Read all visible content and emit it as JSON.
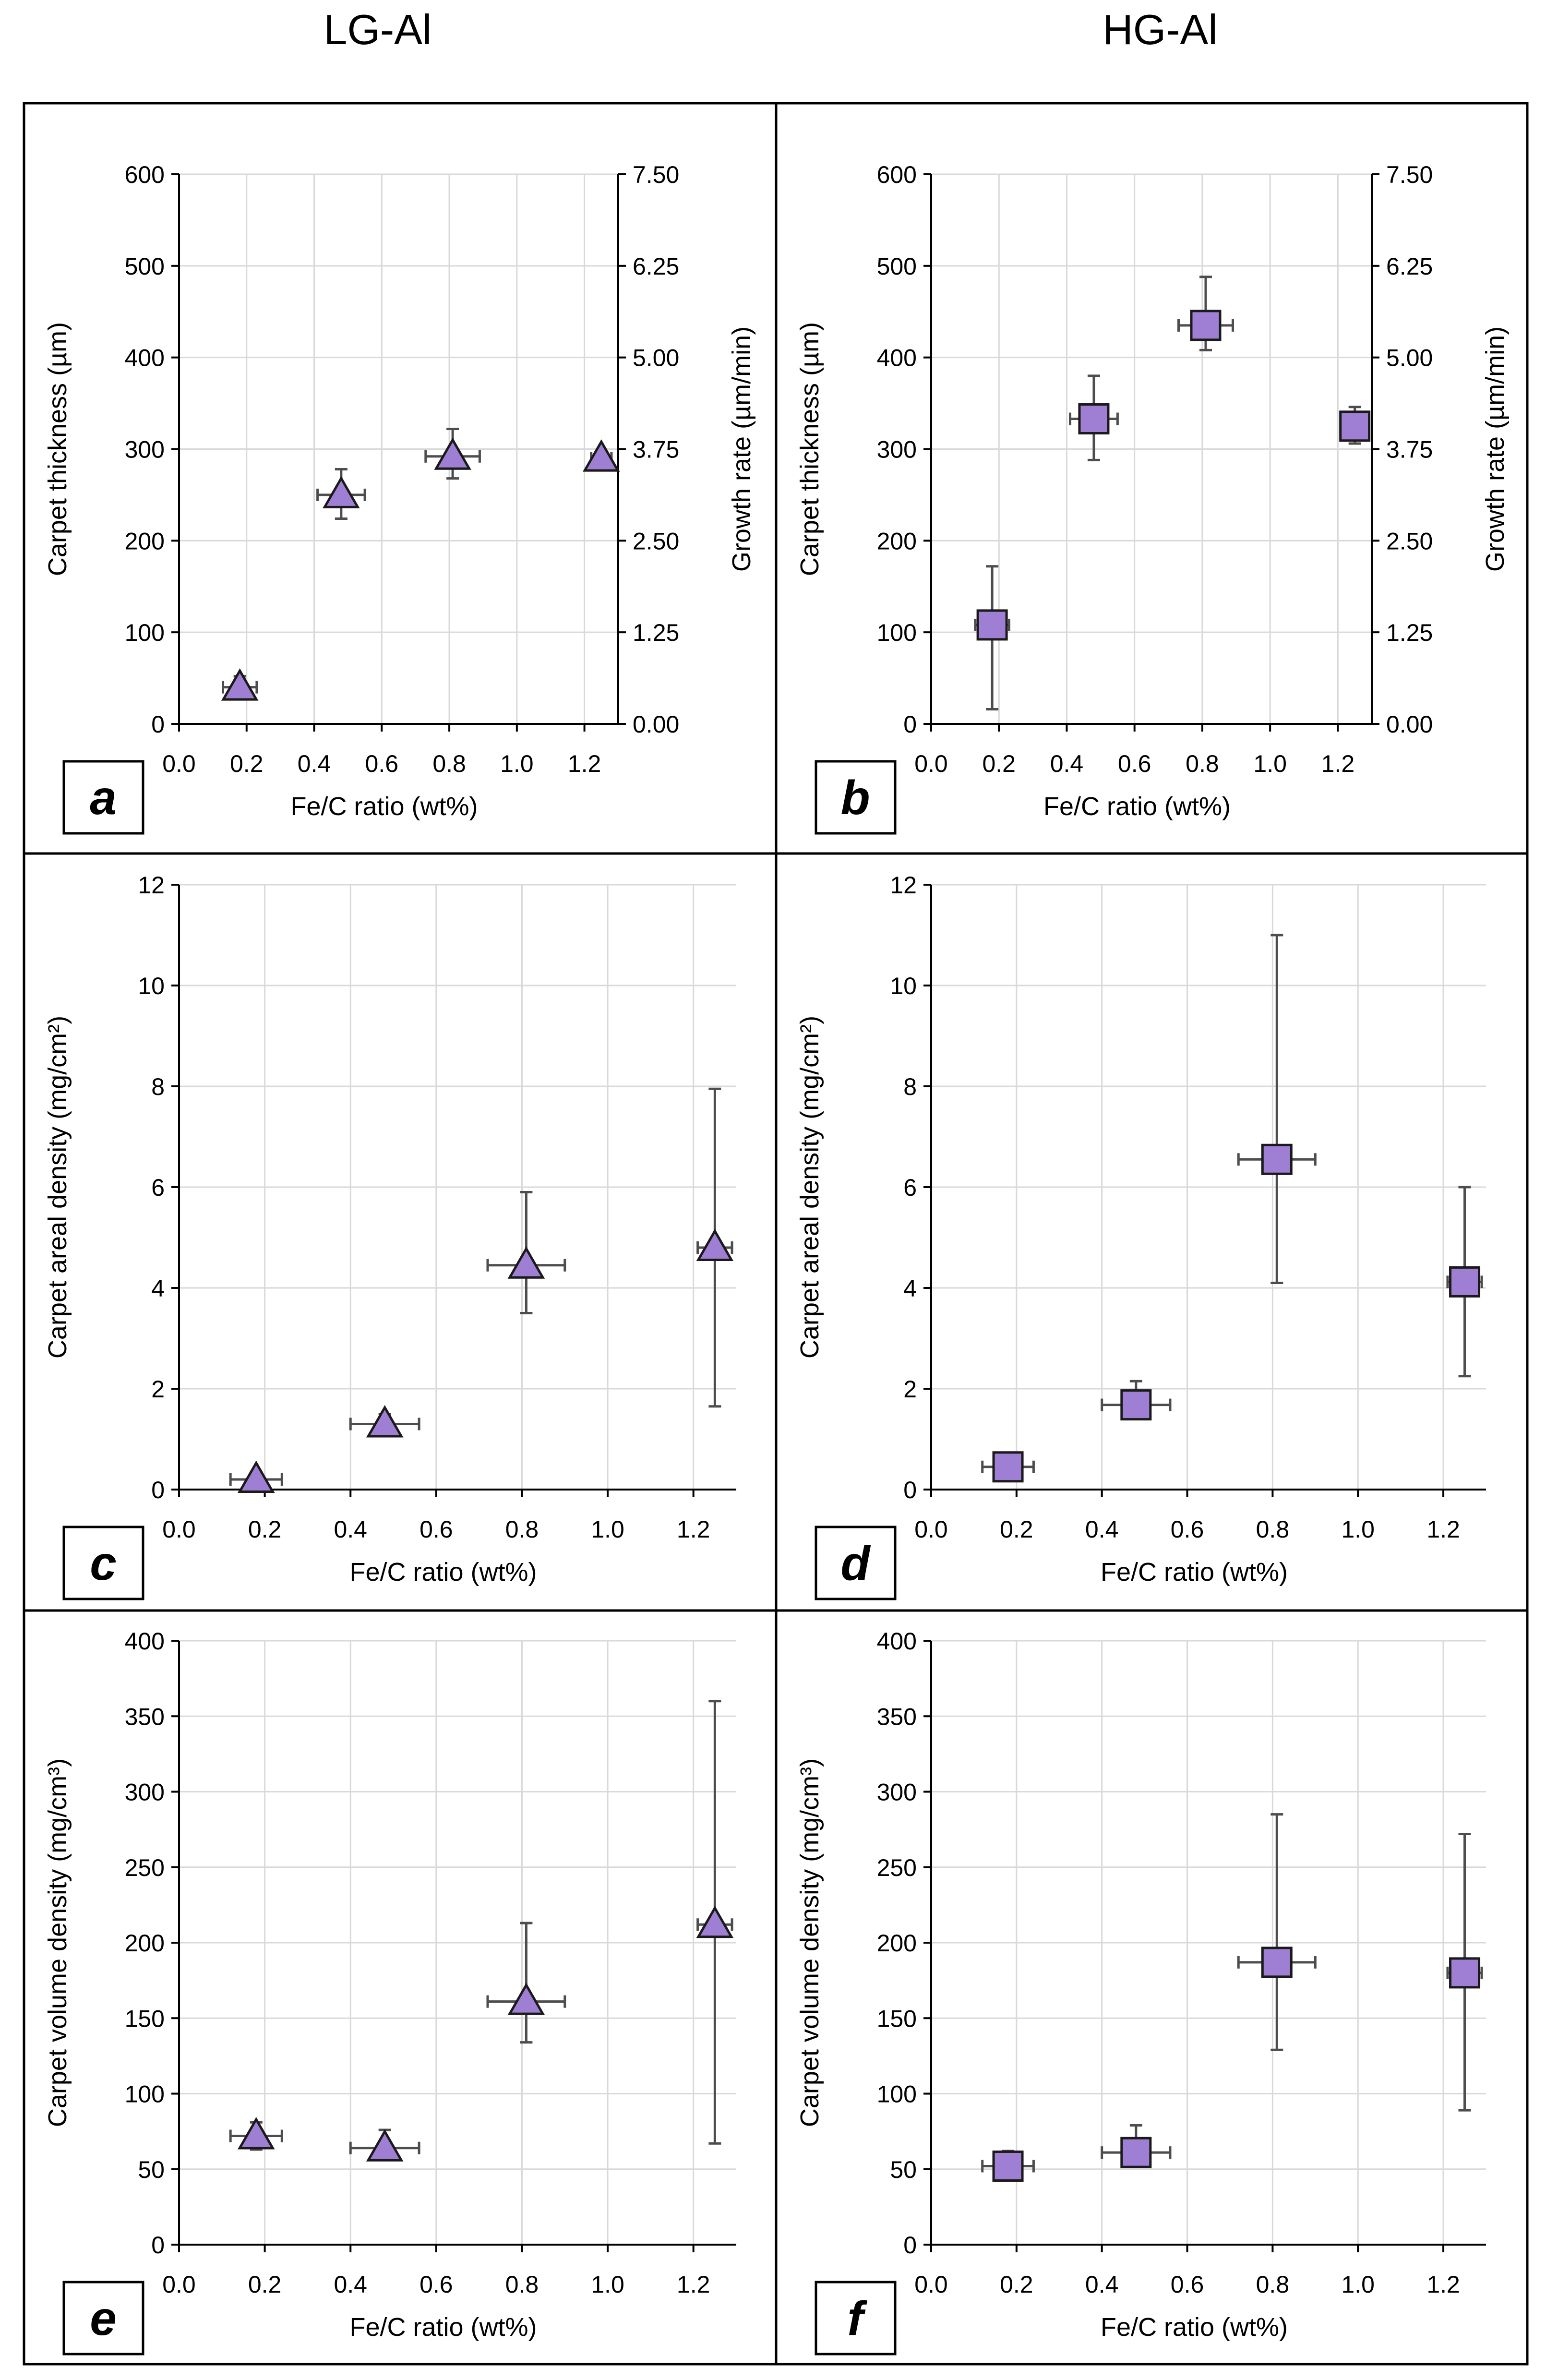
{
  "column_titles": [
    "LG-Al",
    "HG-Al"
  ],
  "colors": {
    "marker_fill": "#9F7FD4",
    "marker_stroke": "#1a1a1a",
    "error_bar": "#4d4d4d",
    "grid": "#d9d9d9",
    "frame": "#000000"
  },
  "chart_data": [
    {
      "type": "scatter",
      "panel": "a",
      "column": "LG-Al",
      "marker": "triangle",
      "xlabel": "Fe/C ratio (wt%)",
      "ylabel": "Carpet thickness (µm)",
      "y2label": "Growth rate (µm/min)",
      "xlim": [
        0,
        1.3
      ],
      "ylim": [
        0,
        600
      ],
      "y2lim": [
        0,
        7.5
      ],
      "x_ticks": [
        "0.0",
        "0.2",
        "0.4",
        "0.6",
        "0.8",
        "1.0",
        "1.2"
      ],
      "y_ticks": [
        "0",
        "100",
        "200",
        "300",
        "400",
        "500",
        "600"
      ],
      "y2_ticks": [
        "0.00",
        "1.25",
        "2.50",
        "3.75",
        "5.00",
        "6.25",
        "7.50"
      ],
      "points": [
        {
          "x": 0.18,
          "y": 40,
          "xerr": 0.05,
          "ylow": 28,
          "yhigh": 52
        },
        {
          "x": 0.48,
          "y": 250,
          "xerr": 0.07,
          "ylow": 224,
          "yhigh": 278
        },
        {
          "x": 0.81,
          "y": 292,
          "xerr": 0.08,
          "ylow": 268,
          "yhigh": 322
        },
        {
          "x": 1.25,
          "y": 290,
          "xerr": 0.03,
          "ylow": 283,
          "yhigh": 297
        }
      ]
    },
    {
      "type": "scatter",
      "panel": "b",
      "column": "HG-Al",
      "marker": "square",
      "xlabel": "Fe/C ratio (wt%)",
      "ylabel": "Carpet thickness (µm)",
      "y2label": "Growth rate (µm/min)",
      "xlim": [
        0,
        1.3
      ],
      "ylim": [
        0,
        600
      ],
      "y2lim": [
        0,
        7.5
      ],
      "x_ticks": [
        "0.0",
        "0.2",
        "0.4",
        "0.6",
        "0.8",
        "1.0",
        "1.2"
      ],
      "y_ticks": [
        "0",
        "100",
        "200",
        "300",
        "400",
        "500",
        "600"
      ],
      "y2_ticks": [
        "0.00",
        "1.25",
        "2.50",
        "3.75",
        "5.00",
        "6.25",
        "7.50"
      ],
      "points": [
        {
          "x": 0.18,
          "y": 108,
          "xerr": 0.05,
          "ylow": 16,
          "yhigh": 172
        },
        {
          "x": 0.48,
          "y": 333,
          "xerr": 0.07,
          "ylow": 288,
          "yhigh": 380
        },
        {
          "x": 0.81,
          "y": 435,
          "xerr": 0.08,
          "ylow": 408,
          "yhigh": 488
        },
        {
          "x": 1.25,
          "y": 325,
          "xerr": 0.03,
          "ylow": 306,
          "yhigh": 346
        }
      ]
    },
    {
      "type": "scatter",
      "panel": "c",
      "column": "LG-Al",
      "marker": "triangle",
      "xlabel": "Fe/C ratio (wt%)",
      "ylabel": "Carpet areal density (mg/cm²)",
      "xlim": [
        0,
        1.3
      ],
      "ylim": [
        0,
        12
      ],
      "x_ticks": [
        "0.0",
        "0.2",
        "0.4",
        "0.6",
        "0.8",
        "1.0",
        "1.2"
      ],
      "y_ticks": [
        "0",
        "2",
        "4",
        "6",
        "8",
        "10",
        "12"
      ],
      "points": [
        {
          "x": 0.18,
          "y": 0.2,
          "xerr": 0.06,
          "ylow": 0.05,
          "yhigh": 0.35
        },
        {
          "x": 0.48,
          "y": 1.3,
          "xerr": 0.08,
          "ylow": 1.12,
          "yhigh": 1.5
        },
        {
          "x": 0.81,
          "y": 4.45,
          "xerr": 0.09,
          "ylow": 3.5,
          "yhigh": 5.9
        },
        {
          "x": 1.25,
          "y": 4.8,
          "xerr": 0.04,
          "ylow": 1.65,
          "yhigh": 7.95
        }
      ]
    },
    {
      "type": "scatter",
      "panel": "d",
      "column": "HG-Al",
      "marker": "square",
      "xlabel": "Fe/C ratio (wt%)",
      "ylabel": "Carpet areal density (mg/cm²)",
      "xlim": [
        0,
        1.3
      ],
      "ylim": [
        0,
        12
      ],
      "x_ticks": [
        "0.0",
        "0.2",
        "0.4",
        "0.6",
        "0.8",
        "1.0",
        "1.2"
      ],
      "y_ticks": [
        "0",
        "2",
        "4",
        "6",
        "8",
        "10",
        "12"
      ],
      "points": [
        {
          "x": 0.18,
          "y": 0.45,
          "xerr": 0.06,
          "ylow": 0.3,
          "yhigh": 0.55
        },
        {
          "x": 0.48,
          "y": 1.68,
          "xerr": 0.08,
          "ylow": 1.4,
          "yhigh": 2.15
        },
        {
          "x": 0.81,
          "y": 6.55,
          "xerr": 0.09,
          "ylow": 4.1,
          "yhigh": 11.0
        },
        {
          "x": 1.25,
          "y": 4.12,
          "xerr": 0.04,
          "ylow": 2.25,
          "yhigh": 6.0
        }
      ]
    },
    {
      "type": "scatter",
      "panel": "e",
      "column": "LG-Al",
      "marker": "triangle",
      "xlabel": "Fe/C ratio (wt%)",
      "ylabel": "Carpet volume density (mg/cm³)",
      "xlim": [
        0,
        1.3
      ],
      "ylim": [
        0,
        400
      ],
      "x_ticks": [
        "0.0",
        "0.2",
        "0.4",
        "0.6",
        "0.8",
        "1.0",
        "1.2"
      ],
      "y_ticks": [
        "0",
        "50",
        "100",
        "150",
        "200",
        "250",
        "300",
        "350",
        "400"
      ],
      "points": [
        {
          "x": 0.18,
          "y": 72,
          "xerr": 0.06,
          "ylow": 63,
          "yhigh": 81
        },
        {
          "x": 0.48,
          "y": 64,
          "xerr": 0.08,
          "ylow": 56,
          "yhigh": 76
        },
        {
          "x": 0.81,
          "y": 161,
          "xerr": 0.09,
          "ylow": 134,
          "yhigh": 213
        },
        {
          "x": 1.25,
          "y": 212,
          "xerr": 0.04,
          "ylow": 67,
          "yhigh": 360
        }
      ]
    },
    {
      "type": "scatter",
      "panel": "f",
      "column": "HG-Al",
      "marker": "square",
      "xlabel": "Fe/C ratio (wt%)",
      "ylabel": "Carpet volume density (mg/cm³)",
      "xlim": [
        0,
        1.3
      ],
      "ylim": [
        0,
        400
      ],
      "x_ticks": [
        "0.0",
        "0.2",
        "0.4",
        "0.6",
        "0.8",
        "1.0",
        "1.2"
      ],
      "y_ticks": [
        "0",
        "50",
        "100",
        "150",
        "200",
        "250",
        "300",
        "350",
        "400"
      ],
      "points": [
        {
          "x": 0.18,
          "y": 52,
          "xerr": 0.06,
          "ylow": 46,
          "yhigh": 62
        },
        {
          "x": 0.48,
          "y": 61,
          "xerr": 0.08,
          "ylow": 53,
          "yhigh": 79
        },
        {
          "x": 0.81,
          "y": 187,
          "xerr": 0.09,
          "ylow": 129,
          "yhigh": 285
        },
        {
          "x": 1.25,
          "y": 180,
          "xerr": 0.04,
          "ylow": 89,
          "yhigh": 272
        }
      ]
    }
  ]
}
